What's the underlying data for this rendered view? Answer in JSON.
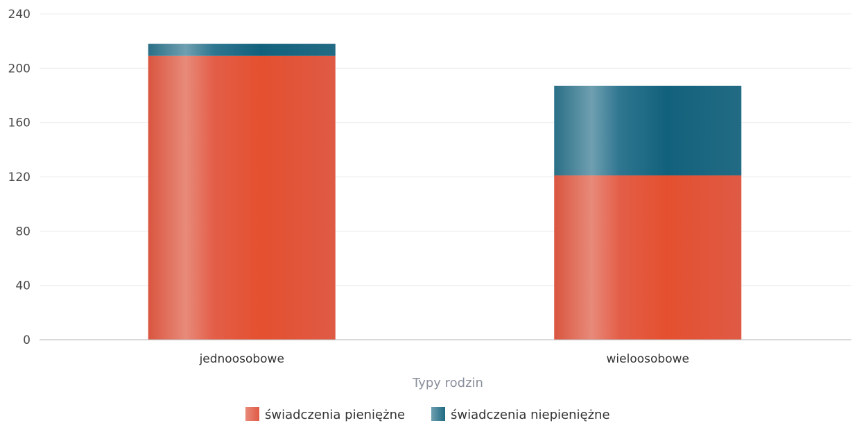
{
  "chart_data": {
    "type": "bar",
    "stacked": true,
    "categories": [
      "jednoosobowe",
      "wieloosobowe"
    ],
    "series": [
      {
        "name": "świadczenia pieniężne",
        "color": "#e05a44",
        "values": [
          209,
          121
        ]
      },
      {
        "name": "świadczenia niepieniężne",
        "color": "#1e6a82",
        "values": [
          9,
          66
        ]
      }
    ],
    "xlabel": "Typy rodzin",
    "ylabel": "",
    "ylim": [
      0,
      240
    ],
    "yticks": [
      0,
      40,
      80,
      120,
      160,
      200,
      240
    ],
    "grid": true,
    "legend_position": "bottom-center"
  }
}
